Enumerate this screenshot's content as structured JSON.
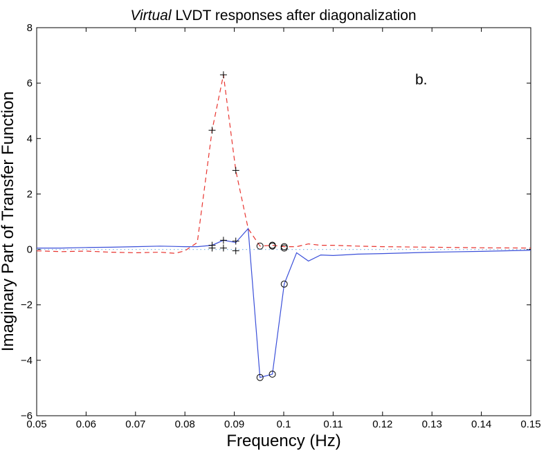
{
  "chart_data": {
    "type": "line",
    "title_italic": "Virtual",
    "title_rest": " LVDT responses after diagonalization",
    "xlabel": "Frequency (Hz)",
    "ylabel": "Imaginary Part of Transfer Function",
    "annotation": "b.",
    "xlim": [
      0.05,
      0.15
    ],
    "ylim": [
      -6,
      8
    ],
    "xticks": [
      0.05,
      0.06,
      0.07,
      0.08,
      0.09,
      0.1,
      0.11,
      0.12,
      0.13,
      0.14,
      0.15
    ],
    "xtick_labels": [
      "0.05",
      "0.06",
      "0.07",
      "0.08",
      "0.09",
      "0.1",
      "0.11",
      "0.12",
      "0.13",
      "0.14",
      "0.15"
    ],
    "yticks": [
      -6,
      -4,
      -2,
      0,
      2,
      4,
      6,
      8
    ],
    "ytick_labels": [
      "−6",
      "−4",
      "−2",
      "0",
      "2",
      "4",
      "6",
      "8"
    ],
    "grid": false,
    "series": [
      {
        "style": "dashed",
        "color": "#e8342f",
        "x": [
          0.05,
          0.055,
          0.06,
          0.065,
          0.07,
          0.075,
          0.078,
          0.08,
          0.0825,
          0.0855,
          0.0878,
          0.0903,
          0.0928,
          0.0952,
          0.0977,
          0.1001,
          0.1026,
          0.105,
          0.1075,
          0.11,
          0.115,
          0.12,
          0.13,
          0.14,
          0.15
        ],
        "y": [
          -0.05,
          -0.08,
          -0.06,
          -0.1,
          -0.12,
          -0.1,
          -0.14,
          -0.05,
          0.25,
          4.3,
          6.3,
          2.85,
          0.75,
          0.12,
          0.15,
          0.1,
          0.1,
          0.2,
          0.15,
          0.15,
          0.12,
          0.1,
          0.08,
          0.06,
          0.05
        ]
      },
      {
        "style": "solid",
        "color": "#3a4fd9",
        "x": [
          0.05,
          0.055,
          0.06,
          0.065,
          0.07,
          0.075,
          0.08,
          0.0825,
          0.0855,
          0.0878,
          0.0903,
          0.0928,
          0.0952,
          0.0977,
          0.1001,
          0.1026,
          0.105,
          0.1075,
          0.11,
          0.115,
          0.12,
          0.13,
          0.14,
          0.15
        ],
        "y": [
          0.05,
          0.05,
          0.07,
          0.08,
          0.1,
          0.12,
          0.1,
          0.1,
          0.15,
          0.33,
          0.25,
          0.75,
          -4.62,
          -4.5,
          -1.25,
          -0.12,
          -0.42,
          -0.2,
          -0.22,
          -0.17,
          -0.15,
          -0.1,
          -0.07,
          -0.03
        ]
      },
      {
        "style": "dotted",
        "color": "#7fb7e6",
        "x": [
          0.05,
          0.15
        ],
        "y": [
          0,
          0
        ]
      }
    ],
    "plus_markers": [
      {
        "x": 0.0855,
        "y": 4.3
      },
      {
        "x": 0.0878,
        "y": 6.3
      },
      {
        "x": 0.0903,
        "y": 2.85
      },
      {
        "x": 0.0855,
        "y": 0.15
      },
      {
        "x": 0.0878,
        "y": 0.33
      },
      {
        "x": 0.0903,
        "y": 0.3
      },
      {
        "x": 0.0855,
        "y": 0.05
      },
      {
        "x": 0.0878,
        "y": 0.05
      },
      {
        "x": 0.0903,
        "y": -0.05
      }
    ],
    "circle_markers": [
      {
        "x": 0.0952,
        "y": 0.12
      },
      {
        "x": 0.0977,
        "y": 0.15
      },
      {
        "x": 0.1001,
        "y": 0.1
      },
      {
        "x": 0.0977,
        "y": 0.12
      },
      {
        "x": 0.1001,
        "y": 0.05
      },
      {
        "x": 0.0952,
        "y": -4.62
      },
      {
        "x": 0.0977,
        "y": -4.5
      },
      {
        "x": 0.1001,
        "y": -1.25
      }
    ]
  }
}
